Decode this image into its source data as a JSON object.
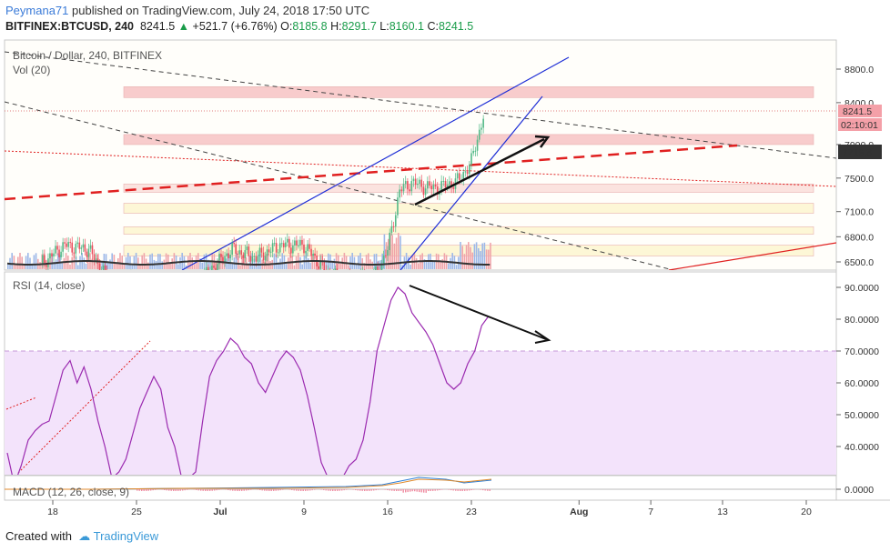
{
  "header": {
    "author": "Peymana71",
    "published_text": "published on TradingView.com, July 24, 2018 17:50 UTC",
    "symbol": "BITFINEX:BTCUSD, 240",
    "last": "8241.5",
    "arrow": "▲",
    "change": "+521.7 (+6.76%)",
    "o_label": "O:",
    "o_val": "8185.8",
    "h_label": "H:",
    "h_val": "8291.7",
    "l_label": "L:",
    "l_val": "8160.1",
    "c_label": "C:",
    "c_val": "8241.5"
  },
  "price_pane": {
    "title": "Bitcoin / Dollar, 240, BITFINEX",
    "vol_label": "Vol (20)",
    "last_price_tag": "8241.5",
    "countdown_tag": "02:10:01",
    "level_tag": "7719.8"
  },
  "rsi_pane": {
    "label": "RSI (14, close)"
  },
  "macd_pane": {
    "label": "MACD (12, 26, close, 9)"
  },
  "footer": {
    "created_with": "Created with",
    "brand": "TradingView"
  },
  "colors": {
    "bull": "#53b987",
    "bear": "#eb4d5c",
    "rsi_line": "#9b2bb0",
    "rsi_fill": "#f3e3fb",
    "trend_blue": "#1f2fd6",
    "dashed_red": "#e02020",
    "zone_pink": "#f8cccc",
    "zone_yellow": "#fdf7d6",
    "zone_peach": "#fbe3df"
  },
  "chart_data": [
    {
      "type": "candlestick",
      "title": "Bitcoin / Dollar, 240, BITFINEX",
      "ylim": [
        6380,
        9050
      ],
      "y_ticks": [
        8800,
        8400,
        7900,
        7500,
        7100,
        6800,
        6500
      ],
      "x_ticks": [
        "18",
        "25",
        "Jul",
        "9",
        "16",
        "23",
        "Aug",
        "7",
        "13",
        "20"
      ],
      "close_path": [
        {
          "x": "Jun 17",
          "close": 6480
        },
        {
          "x": "Jun 19",
          "close": 6700
        },
        {
          "x": "Jun 21",
          "close": 6650
        },
        {
          "x": "Jun 23",
          "close": 6200
        },
        {
          "x": "Jun 25",
          "close": 6250
        },
        {
          "x": "Jun 27",
          "close": 6150
        },
        {
          "x": "Jun 29",
          "close": 6100
        },
        {
          "x": "Jul 1",
          "close": 6380
        },
        {
          "x": "Jul 3",
          "close": 6650
        },
        {
          "x": "Jul 5",
          "close": 6550
        },
        {
          "x": "Jul 7",
          "close": 6700
        },
        {
          "x": "Jul 9",
          "close": 6700
        },
        {
          "x": "Jul 11",
          "close": 6360
        },
        {
          "x": "Jul 13",
          "close": 6250
        },
        {
          "x": "Jul 15",
          "close": 6350
        },
        {
          "x": "Jul 16",
          "close": 6650
        },
        {
          "x": "Jul 17",
          "close": 7350
        },
        {
          "x": "Jul 18",
          "close": 7450
        },
        {
          "x": "Jul 19",
          "close": 7400
        },
        {
          "x": "Jul 20",
          "close": 7380
        },
        {
          "x": "Jul 21",
          "close": 7420
        },
        {
          "x": "Jul 22",
          "close": 7480
        },
        {
          "x": "Jul 23",
          "close": 7700
        },
        {
          "x": "Jul 24",
          "close": 8241.5
        }
      ],
      "zones": [
        {
          "from": 8460,
          "to": 8590,
          "color": "pink"
        },
        {
          "from": 7900,
          "to": 8020,
          "color": "pink"
        },
        {
          "from": 7330,
          "to": 7430,
          "color": "peach"
        },
        {
          "from": 7080,
          "to": 7200,
          "color": "yellow"
        },
        {
          "from": 6830,
          "to": 6920,
          "color": "yellow"
        },
        {
          "from": 6570,
          "to": 6700,
          "color": "yellow"
        }
      ]
    },
    {
      "type": "line",
      "title": "RSI (14, close)",
      "ylim": [
        25,
        95
      ],
      "y_ticks": [
        90,
        80,
        70,
        60,
        50,
        40
      ],
      "overbought": 70,
      "series": [
        {
          "values": [
            38,
            28,
            34,
            42,
            45,
            47,
            48,
            56,
            64,
            67,
            60,
            65,
            58,
            48,
            40,
            30,
            32,
            36,
            44,
            52,
            57,
            62,
            58,
            46,
            40,
            30,
            30,
            32,
            48,
            62,
            67,
            70,
            74,
            72,
            68,
            66,
            60,
            57,
            62,
            67,
            70,
            68,
            64,
            56,
            46,
            35,
            30,
            29,
            30,
            34,
            36,
            42,
            54,
            70,
            78,
            86,
            90,
            88,
            82,
            79,
            76,
            72,
            66,
            60,
            58,
            60,
            66,
            70,
            78,
            81
          ]
        }
      ]
    },
    {
      "type": "line",
      "title": "MACD (12, 26, close, 9)",
      "y_ticks": [
        0
      ]
    }
  ]
}
